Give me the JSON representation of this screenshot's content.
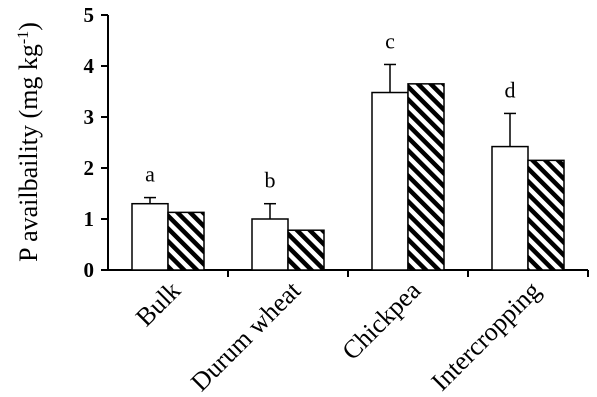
{
  "chart_data": {
    "type": "bar",
    "ylabel": "P availbaility (mg kg",
    "ylabel_superscript": "-1",
    "ylabel_close": ")",
    "ylim": [
      0,
      5
    ],
    "yticks": [
      "0",
      "1",
      "2",
      "3",
      "4",
      "5"
    ],
    "categories": [
      "Bulk",
      "Durum wheat",
      "Chickpea",
      "Intercropping"
    ],
    "series": [
      {
        "fill": "white",
        "values": [
          1.3,
          1.0,
          3.48,
          2.42
        ],
        "errors": [
          0.12,
          0.3,
          0.55,
          0.65
        ]
      },
      {
        "fill": "hatched",
        "values": [
          1.13,
          0.78,
          3.65,
          2.15
        ],
        "errors": [
          null,
          null,
          null,
          null
        ]
      }
    ],
    "annotations": [
      "a",
      "b",
      "c",
      "d"
    ],
    "grid": false,
    "legend": "none"
  }
}
